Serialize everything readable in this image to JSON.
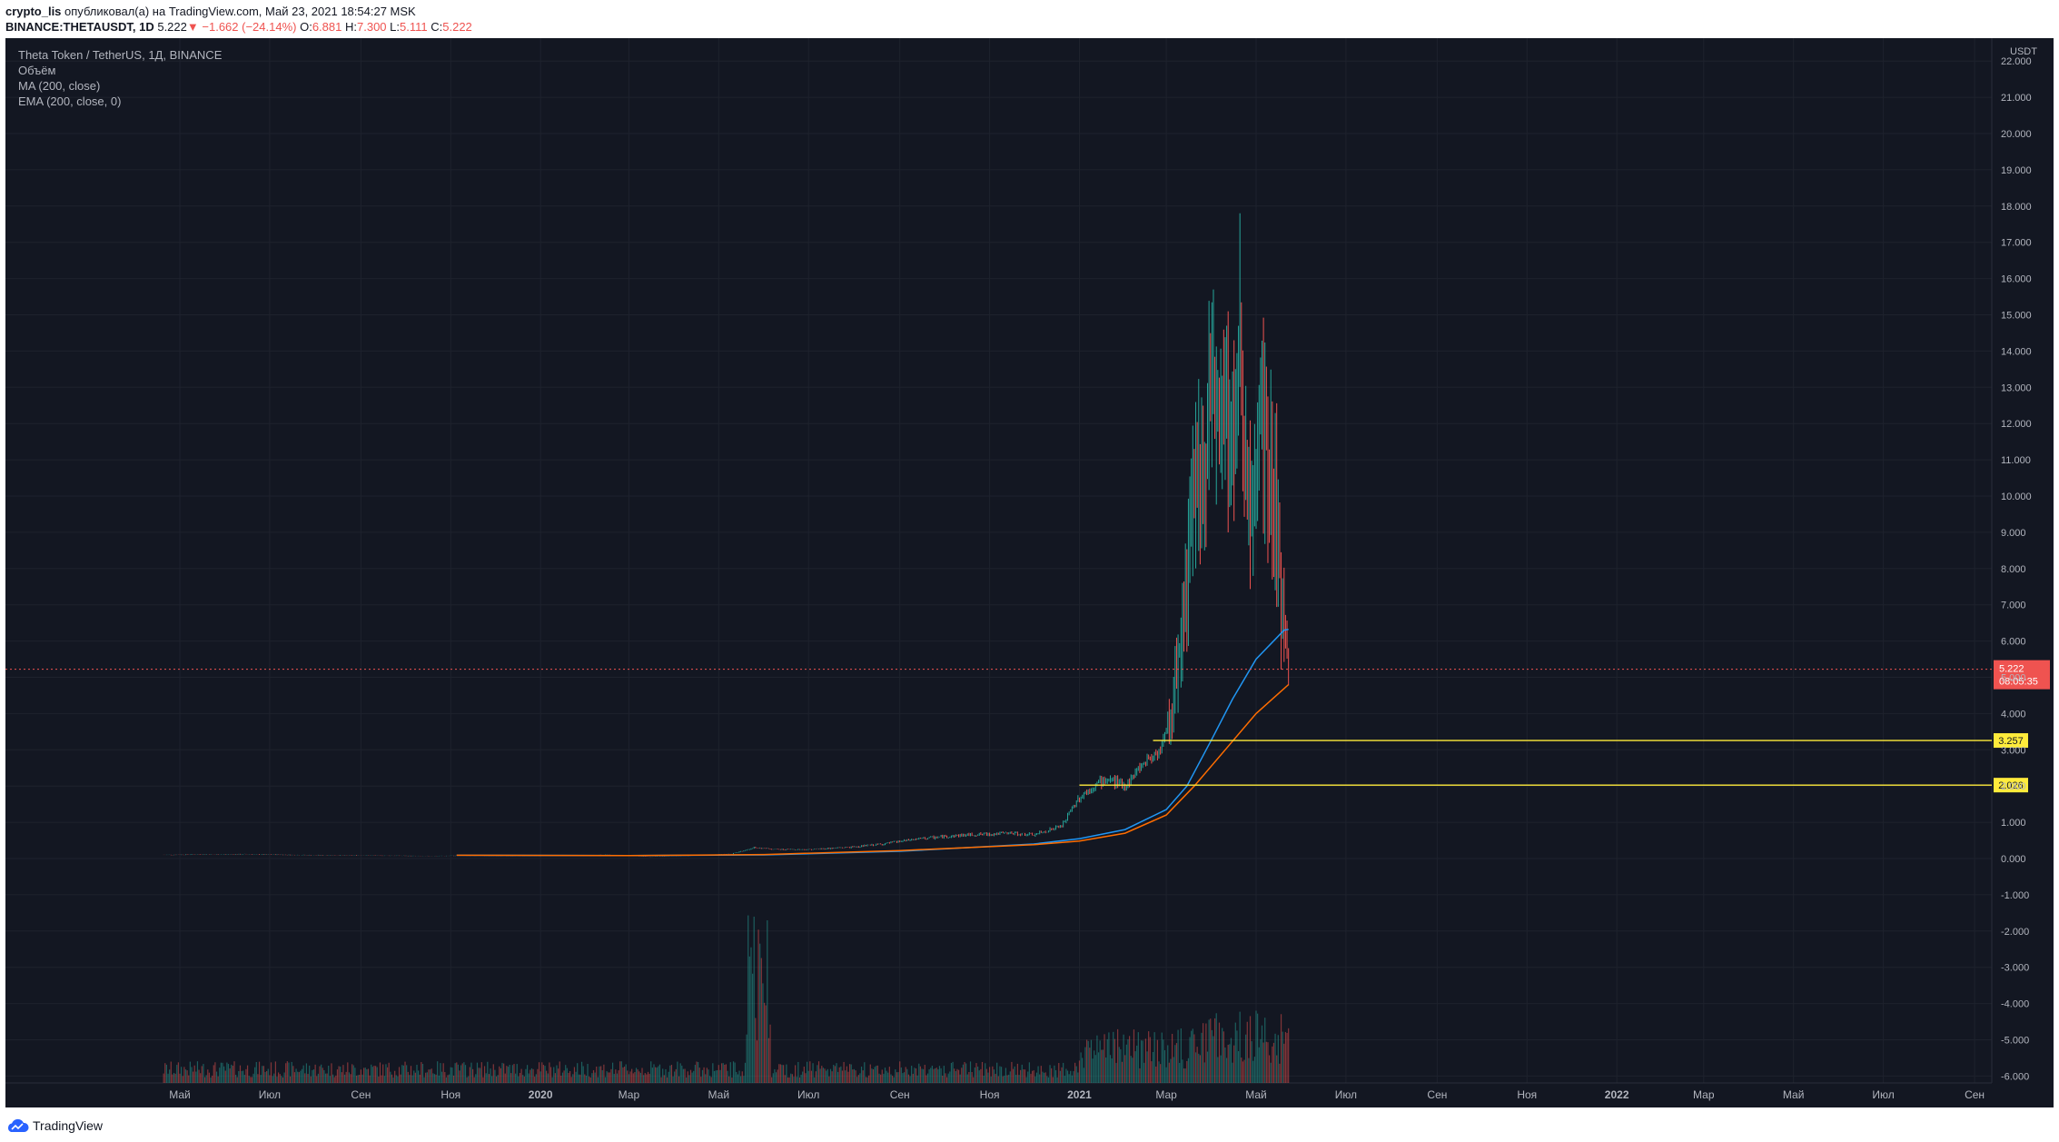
{
  "header": {
    "author": "crypto_lis",
    "published_text": " опубликовал(а) на TradingView.com, Май 23, 2021 18:54:27 MSK",
    "symbol": "BINANCE:THETAUSDT, 1D",
    "last_price": "5.222",
    "change": "−1.662 (−24.14%)",
    "open_label": "O:",
    "open": "6.881",
    "high_label": "H:",
    "high": "7.300",
    "low_label": "L:",
    "low": "5.111",
    "close_label": "C:",
    "close": "5.222"
  },
  "legend": {
    "title": "Theta Token / TetherUS, 1Д, BINANCE",
    "volume": "Объём",
    "ma": "MA (200, close)",
    "ema": "EMA (200, close, 0)"
  },
  "footer": {
    "brand": "TradingView",
    "logo_icon": "tradingview-cloud-icon"
  },
  "colors": {
    "background": "#131722",
    "grid": "#1e222d",
    "text": "#b2b5be",
    "up": "#26a69a",
    "down": "#ef5350",
    "ma": "#2196f3",
    "ema": "#ff6d00",
    "level": "#ffeb3b"
  },
  "chart_data": {
    "type": "candlestick",
    "currency": "USDT",
    "ylim": [
      -6,
      22.5
    ],
    "y_ticks": [
      "22.000",
      "21.000",
      "20.000",
      "19.000",
      "18.000",
      "17.000",
      "16.000",
      "15.000",
      "14.000",
      "13.000",
      "12.000",
      "11.000",
      "10.000",
      "9.000",
      "8.000",
      "7.000",
      "6.000",
      "5.000",
      "4.000",
      "3.000",
      "2.000",
      "1.000",
      "0.000",
      "-1.000",
      "-2.000",
      "-3.000",
      "-4.000",
      "-5.000",
      "-6.000"
    ],
    "x_ticks": [
      {
        "label": "Май",
        "date": "2019-05-01"
      },
      {
        "label": "Июл",
        "date": "2019-07-01"
      },
      {
        "label": "Сен",
        "date": "2019-09-01"
      },
      {
        "label": "Ноя",
        "date": "2019-11-01"
      },
      {
        "label": "2020",
        "date": "2020-01-01"
      },
      {
        "label": "Мар",
        "date": "2020-03-01"
      },
      {
        "label": "Май",
        "date": "2020-05-01"
      },
      {
        "label": "Июл",
        "date": "2020-07-01"
      },
      {
        "label": "Сен",
        "date": "2020-09-01"
      },
      {
        "label": "Ноя",
        "date": "2020-11-01"
      },
      {
        "label": "2021",
        "date": "2021-01-01"
      },
      {
        "label": "Мар",
        "date": "2021-03-01"
      },
      {
        "label": "Май",
        "date": "2021-05-01"
      },
      {
        "label": "Июл",
        "date": "2021-07-01"
      },
      {
        "label": "Сен",
        "date": "2021-09-01"
      },
      {
        "label": "Ноя",
        "date": "2021-11-01"
      },
      {
        "label": "2022",
        "date": "2022-01-01"
      },
      {
        "label": "Мар",
        "date": "2022-03-01"
      },
      {
        "label": "Май",
        "date": "2022-05-01"
      },
      {
        "label": "Июл",
        "date": "2022-07-01"
      },
      {
        "label": "Сен",
        "date": "2022-09-01"
      }
    ],
    "price_series": [
      [
        "2019-04-20",
        0.1
      ],
      [
        "2019-05-15",
        0.11
      ],
      [
        "2019-06-15",
        0.12
      ],
      [
        "2019-07-15",
        0.1
      ],
      [
        "2019-08-15",
        0.09
      ],
      [
        "2019-09-15",
        0.08
      ],
      [
        "2019-10-15",
        0.07
      ],
      [
        "2019-11-15",
        0.08
      ],
      [
        "2019-12-15",
        0.07
      ],
      [
        "2020-01-15",
        0.08
      ],
      [
        "2020-02-15",
        0.1
      ],
      [
        "2020-03-15",
        0.05
      ],
      [
        "2020-04-15",
        0.08
      ],
      [
        "2020-05-10",
        0.13
      ],
      [
        "2020-05-25",
        0.3
      ],
      [
        "2020-06-10",
        0.25
      ],
      [
        "2020-07-01",
        0.25
      ],
      [
        "2020-08-01",
        0.32
      ],
      [
        "2020-08-20",
        0.4
      ],
      [
        "2020-09-15",
        0.55
      ],
      [
        "2020-10-15",
        0.65
      ],
      [
        "2020-11-15",
        0.7
      ],
      [
        "2020-12-01",
        0.65
      ],
      [
        "2020-12-20",
        0.9
      ],
      [
        "2021-01-01",
        1.7
      ],
      [
        "2021-01-10",
        2.0
      ],
      [
        "2021-01-20",
        2.2
      ],
      [
        "2021-02-01",
        2.0
      ],
      [
        "2021-02-15",
        2.7
      ],
      [
        "2021-02-25",
        3.0
      ],
      [
        "2021-03-05",
        4.0
      ],
      [
        "2021-03-10",
        6.0
      ],
      [
        "2021-03-15",
        8.0
      ],
      [
        "2021-03-20",
        10.0
      ],
      [
        "2021-03-28",
        12.0
      ],
      [
        "2021-04-01",
        13.5
      ],
      [
        "2021-04-05",
        11.5
      ],
      [
        "2021-04-10",
        12.5
      ],
      [
        "2021-04-15",
        12.0
      ],
      [
        "2021-04-20",
        14.0
      ],
      [
        "2021-04-25",
        9.5
      ],
      [
        "2021-05-01",
        11.0
      ],
      [
        "2021-05-05",
        12.5
      ],
      [
        "2021-05-10",
        10.5
      ],
      [
        "2021-05-14",
        10.0
      ],
      [
        "2021-05-18",
        7.0
      ],
      [
        "2021-05-23",
        5.222
      ]
    ],
    "ma_200": [
      [
        "2019-11-05",
        0.09
      ],
      [
        "2020-03-01",
        0.08
      ],
      [
        "2020-06-01",
        0.1
      ],
      [
        "2020-09-01",
        0.2
      ],
      [
        "2020-12-01",
        0.4
      ],
      [
        "2021-01-01",
        0.55
      ],
      [
        "2021-02-01",
        0.8
      ],
      [
        "2021-03-01",
        1.35
      ],
      [
        "2021-03-15",
        2.0
      ],
      [
        "2021-04-01",
        3.3
      ],
      [
        "2021-04-15",
        4.4
      ],
      [
        "2021-05-01",
        5.5
      ],
      [
        "2021-05-20",
        6.3
      ],
      [
        "2021-05-23",
        6.32
      ]
    ],
    "ema_200": [
      [
        "2019-11-05",
        0.09
      ],
      [
        "2020-03-01",
        0.08
      ],
      [
        "2020-06-01",
        0.11
      ],
      [
        "2020-09-01",
        0.22
      ],
      [
        "2020-12-01",
        0.38
      ],
      [
        "2021-01-01",
        0.48
      ],
      [
        "2021-02-01",
        0.7
      ],
      [
        "2021-03-01",
        1.2
      ],
      [
        "2021-03-20",
        2.0
      ],
      [
        "2021-04-10",
        3.0
      ],
      [
        "2021-05-01",
        4.0
      ],
      [
        "2021-05-23",
        4.8
      ]
    ],
    "horizontal_levels": [
      {
        "value": 3.257,
        "label": "3.257",
        "start": "2021-02-20"
      },
      {
        "value": 2.026,
        "label": "2.026",
        "start": "2021-01-01"
      }
    ],
    "last_price_label": {
      "value": 5.222,
      "label": "5.222",
      "countdown": "08:05:35"
    }
  }
}
